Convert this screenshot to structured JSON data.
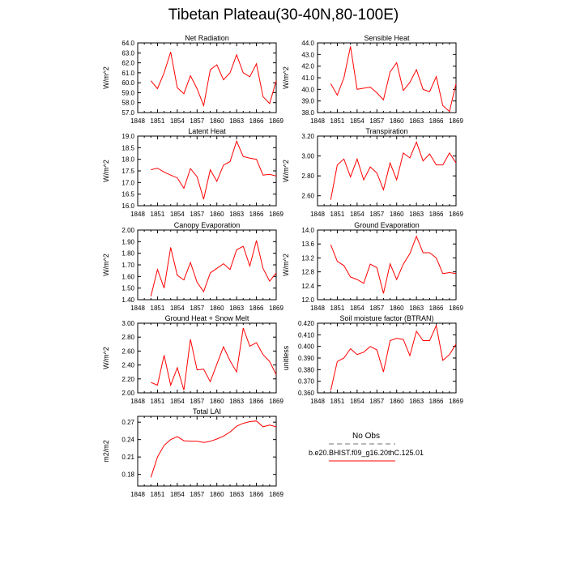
{
  "title": "Tibetan Plateau(30-40N,80-100E)",
  "colors": {
    "series": "#ff0000",
    "no_obs": "#a0a0a0",
    "axis": "#000000"
  },
  "legend": {
    "no_obs_label": "No Obs",
    "model_label": "b.e20.BHIST.f09_g16.20thC.125.01"
  },
  "chart_data": [
    {
      "type": "line",
      "title": "Net Radiation",
      "ylabel": "W/m^2",
      "xlim": [
        1848,
        1869
      ],
      "ylim": [
        57.0,
        64.0
      ],
      "xticks": [
        1848,
        1851,
        1854,
        1857,
        1860,
        1863,
        1866,
        1869
      ],
      "yticks": [
        57.0,
        58.0,
        59.0,
        60.0,
        61.0,
        62.0,
        63.0,
        64.0
      ],
      "ytick_labels": [
        "57.0",
        "58.0",
        "59.0",
        "60.0",
        "61.0",
        "62.0",
        "63.0",
        "64.0"
      ],
      "x": [
        1850,
        1851,
        1852,
        1853,
        1854,
        1855,
        1856,
        1857,
        1858,
        1859,
        1860,
        1861,
        1862,
        1863,
        1864,
        1865,
        1866,
        1867,
        1868,
        1869
      ],
      "values": [
        60.2,
        59.4,
        61.0,
        63.1,
        59.5,
        58.9,
        60.7,
        59.4,
        57.7,
        61.3,
        61.8,
        60.3,
        61.0,
        62.8,
        61.0,
        60.6,
        61.9,
        58.6,
        57.9,
        60.2
      ]
    },
    {
      "type": "line",
      "title": "Sensible Heat",
      "ylabel": "W/m^2",
      "xlim": [
        1848,
        1869
      ],
      "ylim": [
        38.0,
        44.0
      ],
      "xticks": [
        1848,
        1851,
        1854,
        1857,
        1860,
        1863,
        1866,
        1869
      ],
      "yticks": [
        38.0,
        39.0,
        40.0,
        41.0,
        42.0,
        43.0,
        44.0
      ],
      "ytick_labels": [
        "38.0",
        "39.0",
        "40.0",
        "41.0",
        "42.0",
        "43.0",
        "44.0"
      ],
      "x": [
        1850,
        1851,
        1852,
        1853,
        1854,
        1855,
        1856,
        1857,
        1858,
        1859,
        1860,
        1861,
        1862,
        1863,
        1864,
        1865,
        1866,
        1867,
        1868,
        1869
      ],
      "values": [
        40.5,
        39.5,
        41.0,
        43.7,
        40.0,
        40.1,
        40.2,
        39.7,
        39.1,
        41.5,
        42.3,
        39.9,
        40.6,
        41.7,
        40.0,
        39.8,
        41.1,
        38.6,
        38.1,
        40.5
      ]
    },
    {
      "type": "line",
      "title": "Latent Heat",
      "ylabel": "W/m^2",
      "xlim": [
        1848,
        1869
      ],
      "ylim": [
        16.0,
        19.0
      ],
      "xticks": [
        1848,
        1851,
        1854,
        1857,
        1860,
        1863,
        1866,
        1869
      ],
      "yticks": [
        16.0,
        16.5,
        17.0,
        17.5,
        18.0,
        18.5,
        19.0
      ],
      "ytick_labels": [
        "16.0",
        "16.5",
        "17.0",
        "17.5",
        "18.0",
        "18.5",
        "19.0"
      ],
      "x": [
        1850,
        1851,
        1852,
        1853,
        1854,
        1855,
        1856,
        1857,
        1858,
        1859,
        1860,
        1861,
        1862,
        1863,
        1864,
        1865,
        1866,
        1867,
        1868,
        1869
      ],
      "values": [
        17.55,
        17.62,
        17.45,
        17.32,
        17.2,
        16.75,
        17.6,
        17.25,
        16.28,
        17.55,
        17.05,
        17.75,
        17.9,
        18.78,
        18.12,
        18.05,
        18.0,
        17.32,
        17.35,
        17.28
      ]
    },
    {
      "type": "line",
      "title": "Transpiration",
      "ylabel": "W/m^2",
      "xlim": [
        1848,
        1869
      ],
      "ylim": [
        2.5,
        3.2
      ],
      "xticks": [
        1848,
        1851,
        1854,
        1857,
        1860,
        1863,
        1866,
        1869
      ],
      "yticks": [
        2.6,
        2.8,
        3.0,
        3.2
      ],
      "ytick_labels": [
        "2.60",
        "2.80",
        "3.00",
        "3.20"
      ],
      "x": [
        1850,
        1851,
        1852,
        1853,
        1854,
        1855,
        1856,
        1857,
        1858,
        1859,
        1860,
        1861,
        1862,
        1863,
        1864,
        1865,
        1866,
        1867,
        1868,
        1869
      ],
      "values": [
        2.56,
        2.91,
        2.97,
        2.79,
        2.97,
        2.76,
        2.89,
        2.83,
        2.66,
        2.93,
        2.76,
        3.03,
        2.98,
        3.14,
        2.95,
        3.02,
        2.91,
        2.91,
        3.03,
        2.93
      ]
    },
    {
      "type": "line",
      "title": "Canopy Evaporation",
      "ylabel": "W/m^2",
      "xlim": [
        1848,
        1869
      ],
      "ylim": [
        1.4,
        2.0
      ],
      "xticks": [
        1848,
        1851,
        1854,
        1857,
        1860,
        1863,
        1866,
        1869
      ],
      "yticks": [
        1.4,
        1.5,
        1.6,
        1.7,
        1.8,
        1.9,
        2.0
      ],
      "ytick_labels": [
        "1.40",
        "1.50",
        "1.60",
        "1.70",
        "1.80",
        "1.90",
        "2.00"
      ],
      "x": [
        1850,
        1851,
        1852,
        1853,
        1854,
        1855,
        1856,
        1857,
        1858,
        1859,
        1860,
        1861,
        1862,
        1863,
        1864,
        1865,
        1866,
        1867,
        1868,
        1869
      ],
      "values": [
        1.43,
        1.66,
        1.5,
        1.85,
        1.61,
        1.57,
        1.72,
        1.55,
        1.47,
        1.63,
        1.67,
        1.71,
        1.66,
        1.83,
        1.86,
        1.69,
        1.91,
        1.67,
        1.56,
        1.63
      ]
    },
    {
      "type": "line",
      "title": "Ground Evaporation",
      "ylabel": "W/m^2",
      "xlim": [
        1848,
        1869
      ],
      "ylim": [
        12.0,
        14.0
      ],
      "xticks": [
        1848,
        1851,
        1854,
        1857,
        1860,
        1863,
        1866,
        1869
      ],
      "yticks": [
        12.0,
        12.4,
        12.8,
        13.2,
        13.6,
        14.0
      ],
      "ytick_labels": [
        "12.0",
        "12.4",
        "12.8",
        "13.2",
        "13.6",
        "14.0"
      ],
      "x": [
        1850,
        1851,
        1852,
        1853,
        1854,
        1855,
        1856,
        1857,
        1858,
        1859,
        1860,
        1861,
        1862,
        1863,
        1864,
        1865,
        1866,
        1867,
        1868,
        1869
      ],
      "values": [
        13.58,
        13.1,
        12.98,
        12.65,
        12.58,
        12.47,
        13.02,
        12.92,
        12.18,
        13.03,
        12.58,
        13.02,
        13.32,
        13.82,
        13.35,
        13.35,
        13.2,
        12.75,
        12.78,
        12.75
      ]
    },
    {
      "type": "line",
      "title": "Ground Heat + Snow Melt",
      "ylabel": "W/m^2",
      "xlim": [
        1848,
        1869
      ],
      "ylim": [
        2.0,
        3.0
      ],
      "xticks": [
        1848,
        1851,
        1854,
        1857,
        1860,
        1863,
        1866,
        1869
      ],
      "yticks": [
        2.0,
        2.2,
        2.4,
        2.6,
        2.8,
        3.0
      ],
      "ytick_labels": [
        "2.00",
        "2.20",
        "2.40",
        "2.60",
        "2.80",
        "3.00"
      ],
      "x": [
        1850,
        1851,
        1852,
        1853,
        1854,
        1855,
        1856,
        1857,
        1858,
        1859,
        1860,
        1861,
        1862,
        1863,
        1864,
        1865,
        1866,
        1867,
        1868,
        1869
      ],
      "values": [
        2.15,
        2.11,
        2.54,
        2.11,
        2.36,
        2.04,
        2.77,
        2.33,
        2.34,
        2.16,
        2.41,
        2.66,
        2.46,
        2.3,
        2.93,
        2.67,
        2.72,
        2.55,
        2.45,
        2.26
      ]
    },
    {
      "type": "line",
      "title": "Soil moisture factor (BTRAN)",
      "ylabel": "unitless",
      "xlim": [
        1848,
        1869
      ],
      "ylim": [
        0.36,
        0.42
      ],
      "xticks": [
        1848,
        1851,
        1854,
        1857,
        1860,
        1863,
        1866,
        1869
      ],
      "yticks": [
        0.36,
        0.37,
        0.38,
        0.39,
        0.4,
        0.41,
        0.42
      ],
      "ytick_labels": [
        "0.360",
        "0.370",
        "0.380",
        "0.390",
        "0.400",
        "0.410",
        "0.420"
      ],
      "x": [
        1850,
        1851,
        1852,
        1853,
        1854,
        1855,
        1856,
        1857,
        1858,
        1859,
        1860,
        1861,
        1862,
        1863,
        1864,
        1865,
        1866,
        1867,
        1868,
        1869
      ],
      "values": [
        0.362,
        0.387,
        0.39,
        0.398,
        0.393,
        0.395,
        0.4,
        0.397,
        0.378,
        0.405,
        0.407,
        0.406,
        0.392,
        0.413,
        0.405,
        0.405,
        0.418,
        0.388,
        0.393,
        0.402
      ]
    },
    {
      "type": "line",
      "title": "Total LAI",
      "ylabel": "m2/m2",
      "xlim": [
        1848,
        1869
      ],
      "ylim": [
        0.16,
        0.28
      ],
      "xticks": [
        1848,
        1851,
        1854,
        1857,
        1860,
        1863,
        1866,
        1869
      ],
      "yticks": [
        0.18,
        0.21,
        0.24,
        0.27
      ],
      "ytick_labels": [
        "0.18",
        "0.21",
        "0.24",
        "0.27"
      ],
      "x": [
        1850,
        1851,
        1852,
        1853,
        1854,
        1855,
        1856,
        1857,
        1858,
        1859,
        1860,
        1861,
        1862,
        1863,
        1864,
        1865,
        1866,
        1867,
        1868,
        1869
      ],
      "values": [
        0.175,
        0.21,
        0.23,
        0.24,
        0.245,
        0.238,
        0.237,
        0.237,
        0.235,
        0.237,
        0.241,
        0.246,
        0.253,
        0.263,
        0.268,
        0.271,
        0.272,
        0.262,
        0.265,
        0.262
      ]
    }
  ]
}
